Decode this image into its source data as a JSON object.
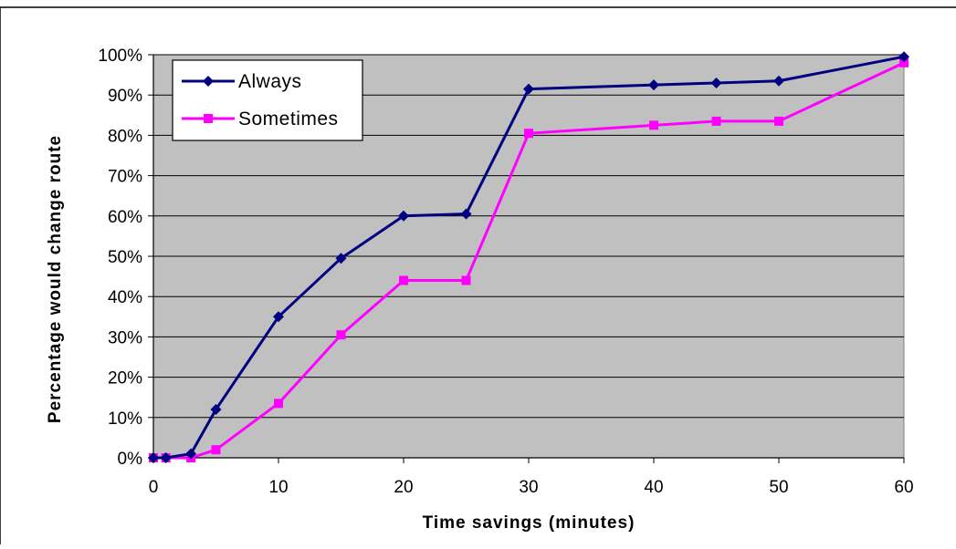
{
  "chart_data": {
    "type": "line",
    "title": "",
    "xlabel": "Time savings (minutes)",
    "ylabel": "Percentage would change route",
    "xlim": [
      0,
      60
    ],
    "ylim": [
      0,
      1
    ],
    "x_ticks": [
      "0",
      "10",
      "20",
      "30",
      "40",
      "50",
      "60"
    ],
    "y_ticks": [
      "0%",
      "10%",
      "20%",
      "30%",
      "40%",
      "50%",
      "60%",
      "70%",
      "80%",
      "90%",
      "100%"
    ],
    "grid": "horizontal",
    "legend_position": "top-left",
    "plot_background": "#c0c0c0",
    "series": [
      {
        "name": "Always",
        "color": "#000080",
        "marker": "diamond",
        "x": [
          0,
          1,
          3,
          5,
          10,
          15,
          20,
          25,
          30,
          40,
          45,
          50,
          60
        ],
        "y": [
          0.0,
          0.0,
          0.01,
          0.12,
          0.35,
          0.495,
          0.6,
          0.605,
          0.915,
          0.925,
          0.93,
          0.935,
          0.995
        ]
      },
      {
        "name": "Sometimes",
        "color": "#ff00ff",
        "marker": "square",
        "x": [
          0,
          1,
          3,
          5,
          10,
          15,
          20,
          25,
          30,
          40,
          45,
          50,
          60
        ],
        "y": [
          0.0,
          0.0,
          0.0,
          0.02,
          0.135,
          0.305,
          0.44,
          0.44,
          0.805,
          0.825,
          0.835,
          0.835,
          0.98
        ]
      }
    ]
  }
}
